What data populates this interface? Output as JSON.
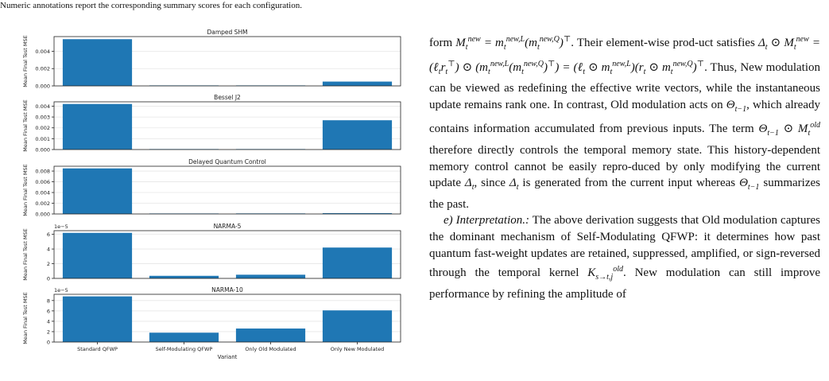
{
  "caption": {
    "text": "Numeric annotations report the corresponding summary scores for each configuration."
  },
  "figure": {
    "xlabel": "Variant",
    "ylabel": "Mean Final Test MSE"
  },
  "chart_data": [
    {
      "type": "bar",
      "title": "Damped SHM",
      "categories": [
        "Standard QFWP",
        "Self-Modulating QFWP",
        "Only Old Modulated",
        "Only New Modulated"
      ],
      "values": [
        0.0054,
        2e-05,
        2e-05,
        0.0005
      ],
      "ylim": [
        0,
        0.0057
      ],
      "ytick_labels": [
        "0.000",
        "0.002",
        "0.004"
      ],
      "yticks": [
        0,
        0.002,
        0.004
      ],
      "offset_label": "",
      "grid": true,
      "show_xticklabels": false
    },
    {
      "type": "bar",
      "title": "Bessel J2",
      "categories": [
        "Standard QFWP",
        "Self-Modulating QFWP",
        "Only Old Modulated",
        "Only New Modulated"
      ],
      "values": [
        0.0042,
        3e-05,
        1e-05,
        0.0027
      ],
      "ylim": [
        0,
        0.0044
      ],
      "ytick_labels": [
        "0.000",
        "0.001",
        "0.002",
        "0.003",
        "0.004"
      ],
      "yticks": [
        0,
        0.001,
        0.002,
        0.003,
        0.004
      ],
      "offset_label": "",
      "grid": true,
      "show_xticklabels": false
    },
    {
      "type": "bar",
      "title": "Delayed Quantum Control",
      "categories": [
        "Standard QFWP",
        "Self-Modulating QFWP",
        "Only Old Modulated",
        "Only New Modulated"
      ],
      "values": [
        0.0085,
        3e-05,
        0.0001,
        0.00015
      ],
      "ylim": [
        0,
        0.0089
      ],
      "ytick_labels": [
        "0.000",
        "0.002",
        "0.004",
        "0.006",
        "0.008"
      ],
      "yticks": [
        0,
        0.002,
        0.004,
        0.006,
        0.008
      ],
      "offset_label": "",
      "grid": true,
      "show_xticklabels": false
    },
    {
      "type": "bar",
      "title": "NARMA-5",
      "categories": [
        "Standard QFWP",
        "Self-Modulating QFWP",
        "Only Old Modulated",
        "Only New Modulated"
      ],
      "values": [
        6.2,
        0.35,
        0.5,
        4.2
      ],
      "ylim": [
        0,
        6.5
      ],
      "ytick_labels": [
        "0",
        "2",
        "4",
        "6"
      ],
      "yticks": [
        0,
        2,
        4,
        6
      ],
      "offset_label": "1e−5",
      "grid": true,
      "show_xticklabels": false
    },
    {
      "type": "bar",
      "title": "NARMA-10",
      "categories": [
        "Standard QFWP",
        "Self-Modulating QFWP",
        "Only Old Modulated",
        "Only New Modulated"
      ],
      "values": [
        8.8,
        1.8,
        2.6,
        6.1
      ],
      "ylim": [
        0,
        9.2
      ],
      "ytick_labels": [
        "0",
        "2",
        "4",
        "6",
        "8"
      ],
      "yticks": [
        0,
        2,
        4,
        6,
        8
      ],
      "offset_label": "1e−5",
      "grid": true,
      "show_xticklabels": true
    }
  ],
  "text": {
    "p1": {
      "t1": "form ",
      "t2": ". Their element-wise prod-uct satisfies ",
      "t3": ". Thus, New modulation can be viewed as redefining the effective write vectors, while the instantaneous update remains rank one. In contrast, Old modulation acts on ",
      "t4": ", which already contains information accumulated from previous inputs. The term ",
      "t5": " therefore directly controls the temporal memory state. This history-dependent memory control cannot be easily repro-duced by only modifying the current update ",
      "t6": ", since ",
      "t7": " is generated from the current input whereas ",
      "t8": " summarizes the past."
    },
    "p2": {
      "heading": "e) Interpretation.:",
      "t1": " The above derivation suggests that Old modulation captures the dominant mechanism of Self-Modulating QFWP: it determines how past quantum fast-weight updates are retained, suppressed, amplified, or sign-reversed through the temporal kernel ",
      "t2": ". New modulation can still improve performance by refining the amplitude of"
    }
  },
  "colors": {
    "bar": "#1f77b4",
    "grid": "#e6e6e6",
    "axis": "#222222"
  }
}
